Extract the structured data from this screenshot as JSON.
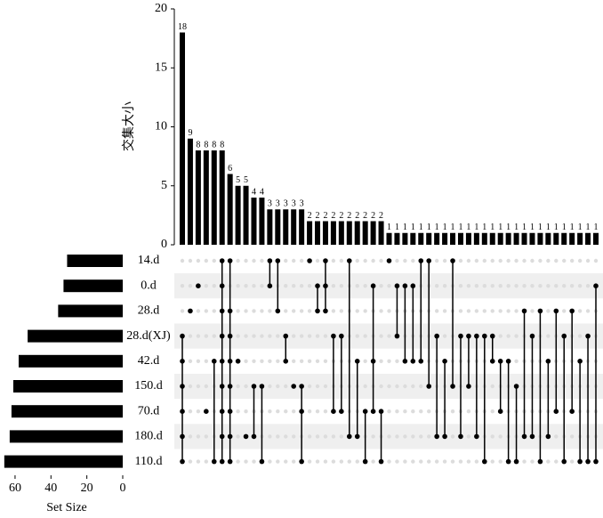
{
  "chart_data": {
    "type": "upset",
    "y_label": "交集大小",
    "x_label": "Set Size",
    "color": "#000000",
    "ylim": [
      0,
      20
    ],
    "yticks": [
      0,
      5,
      10,
      15,
      20
    ],
    "xlim": [
      0,
      68
    ],
    "xticks": [
      0,
      20,
      40,
      60
    ],
    "sets": {
      "names": [
        "14.d",
        "0.d",
        "28.d",
        "28.d(XJ)",
        "42.d",
        "150.d",
        "70.d",
        "180.d",
        "110.d"
      ],
      "values": [
        31,
        33,
        36,
        53,
        58,
        61,
        62,
        63,
        66
      ]
    },
    "intersections": {
      "values": [
        18,
        9,
        8,
        8,
        8,
        8,
        6,
        5,
        5,
        4,
        4,
        3,
        3,
        3,
        3,
        3,
        2,
        2,
        2,
        2,
        2,
        2,
        2,
        2,
        2,
        2,
        1,
        1,
        1,
        1,
        1,
        1,
        1,
        1,
        1,
        1,
        1,
        1,
        1,
        1,
        1,
        1,
        1,
        1,
        1,
        1,
        1,
        1,
        1,
        1,
        1,
        1,
        1
      ],
      "memberships": [
        [
          3,
          4,
          5,
          6,
          7,
          8
        ],
        [
          2
        ],
        [
          1
        ],
        [
          6
        ],
        [
          4,
          8
        ],
        [
          0,
          1,
          2,
          3,
          4,
          5,
          6,
          7,
          8
        ],
        [
          0,
          2,
          3,
          4,
          5,
          6,
          7,
          8
        ],
        [
          4
        ],
        [
          7
        ],
        [
          5,
          7
        ],
        [
          5,
          8
        ],
        [
          0,
          1
        ],
        [
          0,
          2
        ],
        [
          3,
          4
        ],
        [
          5
        ],
        [
          5,
          6,
          8
        ],
        [
          0
        ],
        [
          1,
          2
        ],
        [
          0,
          1,
          2
        ],
        [
          3,
          6
        ],
        [
          3,
          6
        ],
        [
          0,
          7
        ],
        [
          4,
          7
        ],
        [
          6,
          8
        ],
        [
          1,
          4,
          6
        ],
        [
          6,
          8
        ],
        [
          0
        ],
        [
          1,
          3
        ],
        [
          1,
          4
        ],
        [
          1,
          4
        ],
        [
          0,
          4
        ],
        [
          0,
          5
        ],
        [
          3,
          7
        ],
        [
          4,
          7
        ],
        [
          0,
          5
        ],
        [
          3,
          7
        ],
        [
          3,
          5
        ],
        [
          3,
          7
        ],
        [
          3,
          8
        ],
        [
          3,
          4
        ],
        [
          4,
          6
        ],
        [
          4,
          8
        ],
        [
          5,
          8
        ],
        [
          2,
          7
        ],
        [
          3,
          7
        ],
        [
          2,
          8
        ],
        [
          4,
          7
        ],
        [
          2,
          6
        ],
        [
          3,
          8
        ],
        [
          2,
          6
        ],
        [
          4,
          8
        ],
        [
          3,
          8
        ],
        [
          1,
          8
        ]
      ]
    }
  }
}
